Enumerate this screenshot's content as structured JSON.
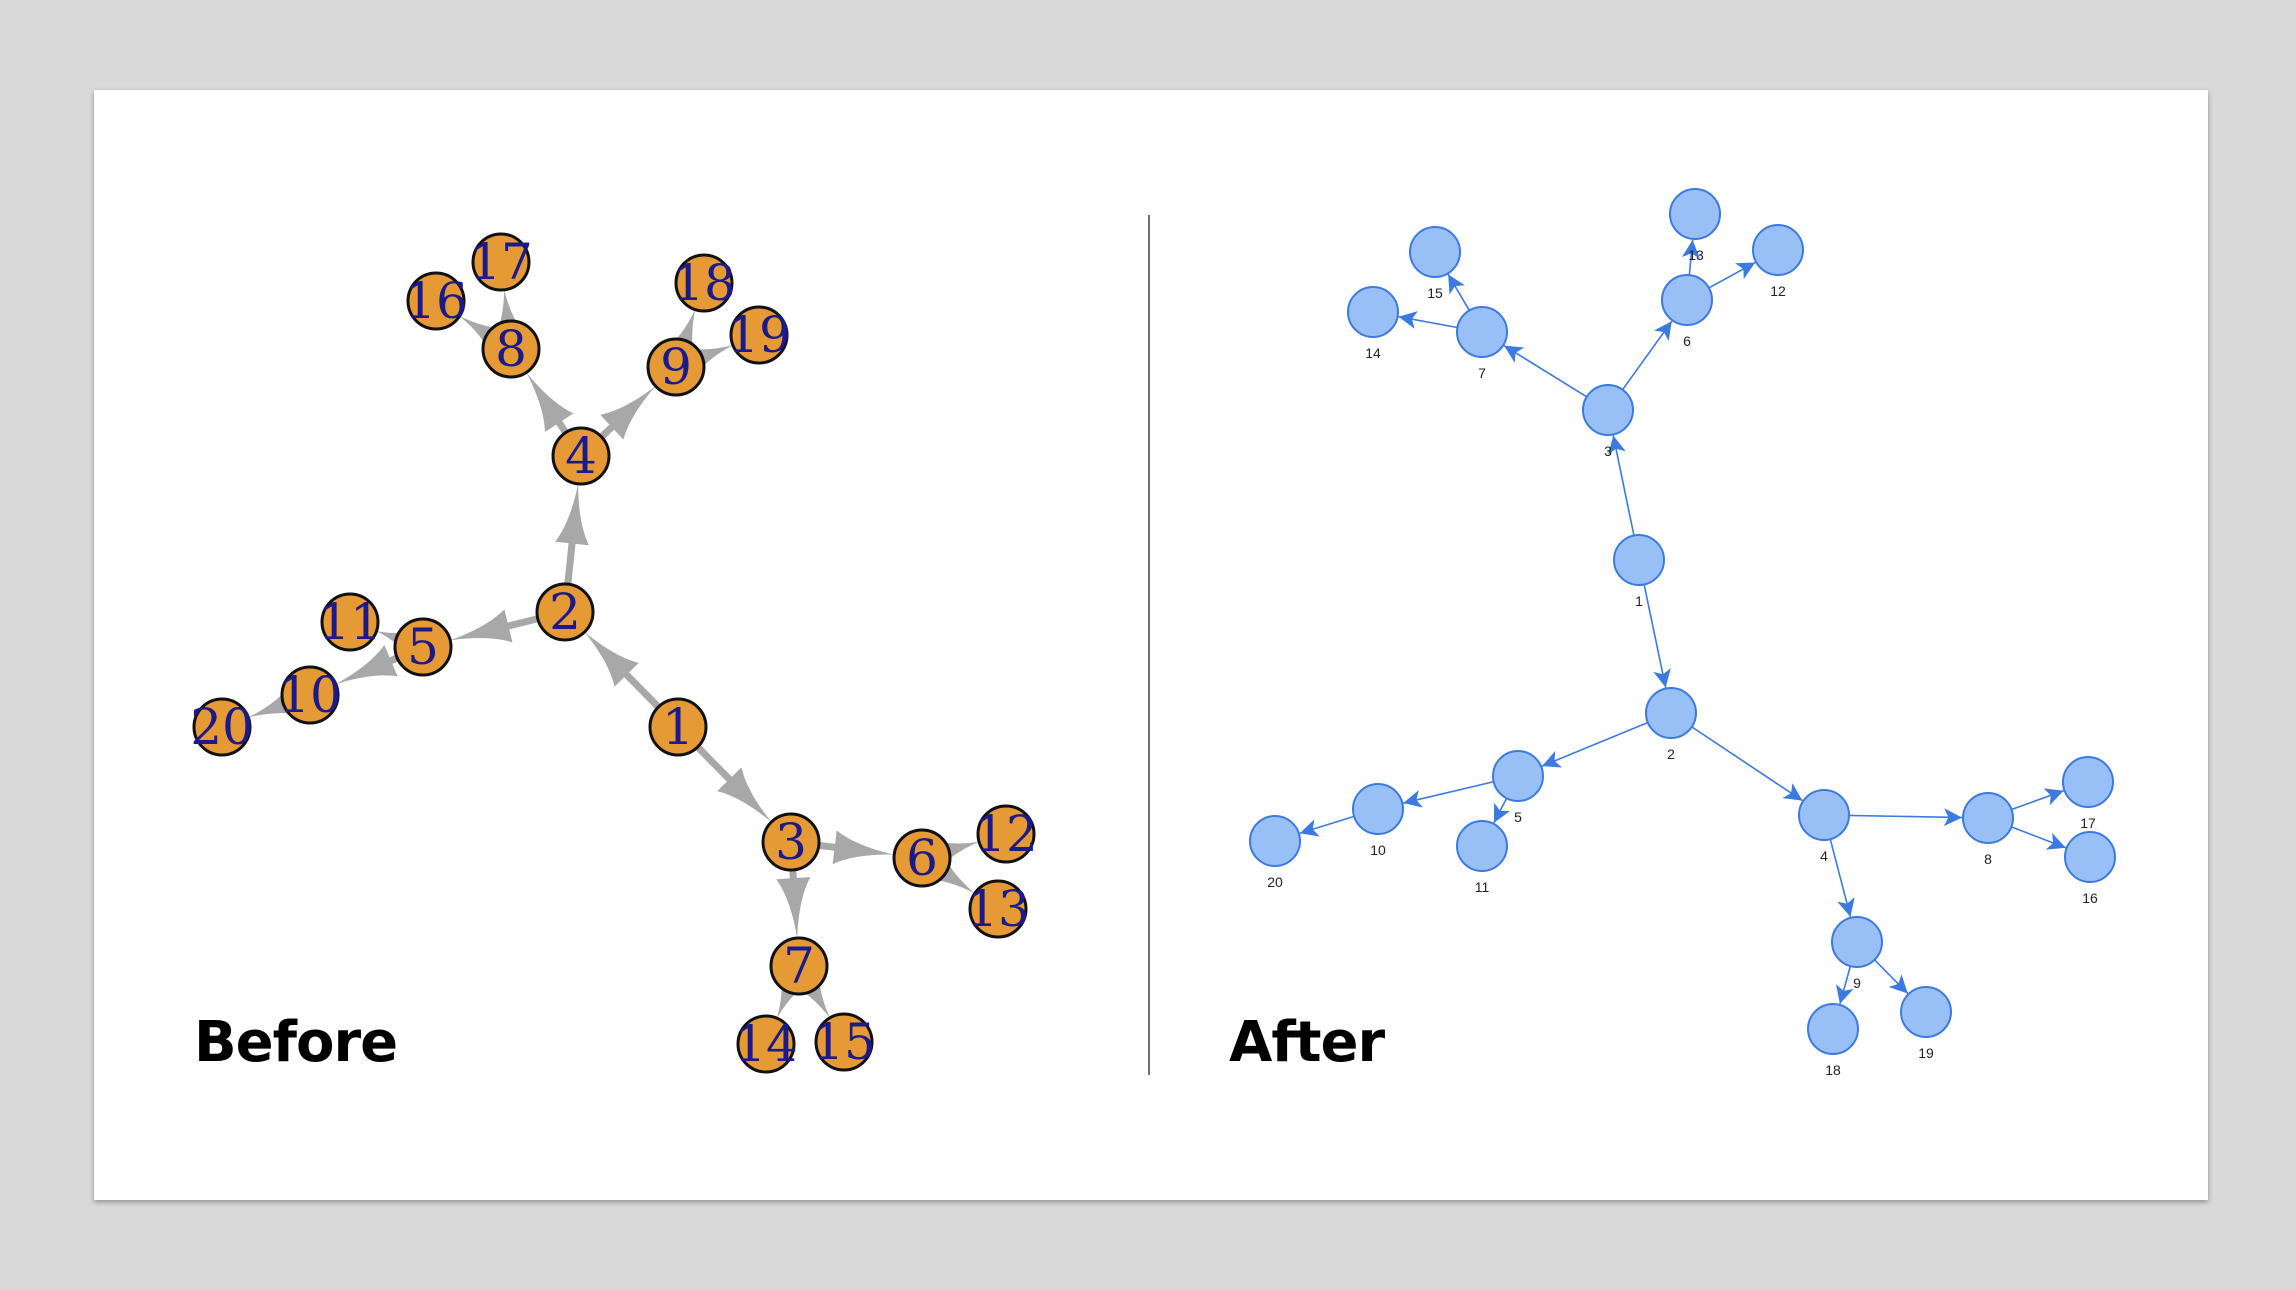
{
  "labels": {
    "before": "Before",
    "after": "After"
  },
  "colors": {
    "page_background": "#d9d9d9",
    "slide_background": "#ffffff",
    "before_node_fill": "#e69a35",
    "before_node_stroke": "#111111",
    "before_label": "#1a1a8c",
    "before_edge": "#a8a8a8",
    "after_node_fill": "#99bff7",
    "after_node_stroke": "#3b7ae0",
    "after_edge": "#3b7ae0",
    "after_label": "#222222"
  },
  "graph": {
    "type": "directed-tree",
    "nodes": [
      "1",
      "2",
      "3",
      "4",
      "5",
      "6",
      "7",
      "8",
      "9",
      "10",
      "11",
      "12",
      "13",
      "14",
      "15",
      "16",
      "17",
      "18",
      "19",
      "20"
    ],
    "before_edges": [
      [
        "1",
        "2"
      ],
      [
        "1",
        "3"
      ],
      [
        "2",
        "4"
      ],
      [
        "2",
        "5"
      ],
      [
        "4",
        "8"
      ],
      [
        "4",
        "9"
      ],
      [
        "8",
        "16"
      ],
      [
        "8",
        "17"
      ],
      [
        "9",
        "18"
      ],
      [
        "9",
        "19"
      ],
      [
        "5",
        "10"
      ],
      [
        "5",
        "11"
      ],
      [
        "10",
        "20"
      ],
      [
        "3",
        "6"
      ],
      [
        "3",
        "7"
      ],
      [
        "6",
        "12"
      ],
      [
        "6",
        "13"
      ],
      [
        "7",
        "14"
      ],
      [
        "7",
        "15"
      ]
    ],
    "after_edges": [
      [
        "1",
        "3"
      ],
      [
        "1",
        "2"
      ],
      [
        "3",
        "7"
      ],
      [
        "3",
        "6"
      ],
      [
        "7",
        "15"
      ],
      [
        "7",
        "14"
      ],
      [
        "6",
        "13"
      ],
      [
        "6",
        "12"
      ],
      [
        "2",
        "5"
      ],
      [
        "2",
        "4"
      ],
      [
        "5",
        "10"
      ],
      [
        "5",
        "11"
      ],
      [
        "10",
        "20"
      ],
      [
        "4",
        "8"
      ],
      [
        "4",
        "9"
      ],
      [
        "8",
        "17"
      ],
      [
        "8",
        "16"
      ],
      [
        "9",
        "18"
      ],
      [
        "9",
        "19"
      ]
    ]
  }
}
